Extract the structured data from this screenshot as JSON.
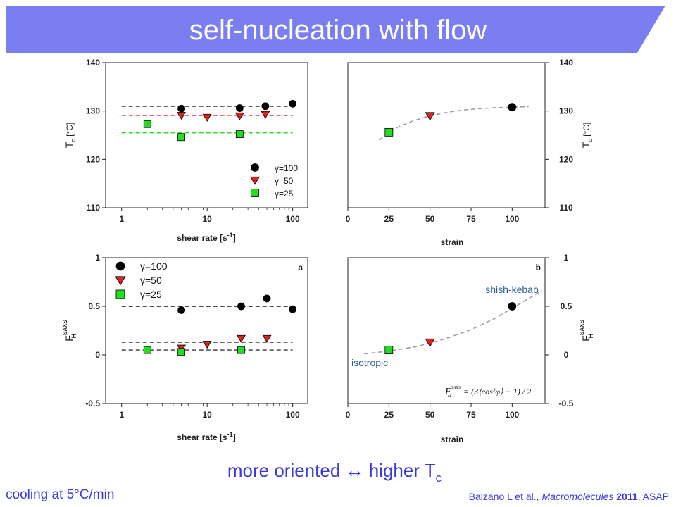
{
  "slide": {
    "title": "self-nucleation with flow",
    "conclusion": {
      "text": "more oriented ↔ higher T",
      "subscript": "c"
    },
    "footer_left": "cooling at 5°C/min",
    "citation": {
      "authors": "Balzano L et al., ",
      "journal": "Macromolecules",
      "year": " 2011",
      "status": ", ASAP"
    },
    "colors": {
      "banner": "#7a7ef0",
      "text_accent": "#3a3ad8",
      "series_100": "#000000",
      "series_50": "#dd2222",
      "series_25": "#22dd22"
    }
  },
  "chart_data": [
    {
      "type": "scatter",
      "id": "tc_vs_shear",
      "xscale": "log",
      "xlim": [
        0.65,
        150
      ],
      "ylim": [
        110,
        140
      ],
      "xticks": [
        1,
        10,
        100
      ],
      "yticks": [
        110,
        120,
        130,
        140
      ],
      "xlabel": "shear rate [s",
      "xlabel_sup": "-1",
      "xlabel_end": "]",
      "ylabel": "T",
      "ylabel_sub": "c",
      "ylabel_end": " [°C]",
      "legend_position": "bottom-right",
      "series": [
        {
          "name": "γ=100",
          "marker": "circle",
          "color": "#000000",
          "x": [
            5,
            24,
            48,
            100
          ],
          "y": [
            130.5,
            130.6,
            131.0,
            131.5
          ],
          "fit": {
            "y": 131.0,
            "x": [
              1,
              100
            ]
          }
        },
        {
          "name": "γ=50",
          "marker": "triangle",
          "color": "#dd2222",
          "x": [
            5,
            10,
            24,
            48
          ],
          "y": [
            129.1,
            128.7,
            129.0,
            129.3
          ],
          "fit": {
            "y": 129.1,
            "x": [
              1,
              100
            ]
          }
        },
        {
          "name": "γ=25",
          "marker": "square",
          "color": "#22dd22",
          "x": [
            2,
            5,
            24
          ],
          "y": [
            127.3,
            124.6,
            125.2
          ],
          "fit": {
            "y": 125.5,
            "x": [
              1,
              100
            ]
          }
        }
      ]
    },
    {
      "type": "scatter",
      "id": "tc_vs_strain",
      "xlim": [
        0,
        120
      ],
      "ylim": [
        110,
        140
      ],
      "xticks": [
        0,
        25,
        50,
        75,
        100
      ],
      "yticks": [
        110,
        120,
        130,
        140
      ],
      "xlabel": "strain",
      "ylabel": "T",
      "ylabel_sub": "c",
      "ylabel_end": " [°C]",
      "series": [
        {
          "marker": "circle",
          "color": "#000000",
          "x": [
            100
          ],
          "y": [
            130.8
          ]
        },
        {
          "marker": "triangle",
          "color": "#dd2222",
          "x": [
            50
          ],
          "y": [
            129.0
          ]
        },
        {
          "marker": "square",
          "color": "#22dd22",
          "x": [
            25
          ],
          "y": [
            125.6
          ]
        }
      ],
      "trend": {
        "x": [
          19,
          30,
          40,
          50,
          60,
          70,
          80,
          90,
          100,
          110
        ],
        "y": [
          124.0,
          126.6,
          128.0,
          129.0,
          129.7,
          130.2,
          130.5,
          130.7,
          130.8,
          130.9
        ]
      }
    },
    {
      "type": "scatter",
      "id": "fh_vs_shear",
      "panel": "a",
      "xscale": "log",
      "xlim": [
        0.65,
        150
      ],
      "ylim": [
        -0.5,
        1.0
      ],
      "xticks": [
        1,
        10,
        100
      ],
      "yticks": [
        -0.5,
        0.0,
        0.5,
        1.0
      ],
      "xlabel": "shear rate [s",
      "xlabel_sup": "-1",
      "xlabel_end": "]",
      "ylabel": "F",
      "ylabel_sub": "H",
      "ylabel_sup": "SAXS",
      "legend_position": "top-left",
      "series": [
        {
          "name": "γ=100",
          "marker": "circle",
          "color": "#000000",
          "x": [
            5,
            25,
            50,
            100
          ],
          "y": [
            0.46,
            0.5,
            0.58,
            0.47
          ],
          "fit": {
            "y": 0.5,
            "x": [
              1,
              100
            ]
          }
        },
        {
          "name": "γ=50",
          "marker": "triangle",
          "color": "#dd2222",
          "x": [
            5,
            10,
            25,
            50
          ],
          "y": [
            0.07,
            0.11,
            0.17,
            0.17
          ],
          "fit": {
            "y": 0.13,
            "x": [
              1,
              100
            ]
          }
        },
        {
          "name": "γ=25",
          "marker": "square",
          "color": "#22dd22",
          "x": [
            2,
            5,
            25
          ],
          "y": [
            0.05,
            0.03,
            0.05
          ],
          "fit": {
            "y": 0.05,
            "x": [
              1,
              100
            ]
          }
        }
      ]
    },
    {
      "type": "scatter",
      "id": "fh_vs_strain",
      "panel": "b",
      "xlim": [
        0,
        120
      ],
      "ylim": [
        -0.5,
        1.0
      ],
      "xticks": [
        0,
        25,
        50,
        75,
        100
      ],
      "yticks": [
        -0.5,
        0.0,
        0.5,
        1.0
      ],
      "xlabel": "strain",
      "ylabel": "F",
      "ylabel_sub": "H",
      "ylabel_sup": "SAXS",
      "annotations": [
        "shish-kebab",
        "isotropic"
      ],
      "formula": {
        "lhs": "F",
        "lhs_sub": "H",
        "lhs_sup": "SAXS",
        "rhs": "= (3⟨cos²φ⟩ − 1) / 2"
      },
      "series": [
        {
          "marker": "circle",
          "color": "#000000",
          "x": [
            100
          ],
          "y": [
            0.5
          ]
        },
        {
          "marker": "triangle",
          "color": "#dd2222",
          "x": [
            50
          ],
          "y": [
            0.13
          ]
        },
        {
          "marker": "square",
          "color": "#22dd22",
          "x": [
            25
          ],
          "y": [
            0.05
          ]
        }
      ],
      "trend": {
        "x": [
          10,
          25,
          40,
          50,
          60,
          75,
          90,
          100,
          110,
          118
        ],
        "y": [
          0.01,
          0.04,
          0.08,
          0.12,
          0.17,
          0.26,
          0.38,
          0.48,
          0.58,
          0.66
        ]
      }
    }
  ]
}
